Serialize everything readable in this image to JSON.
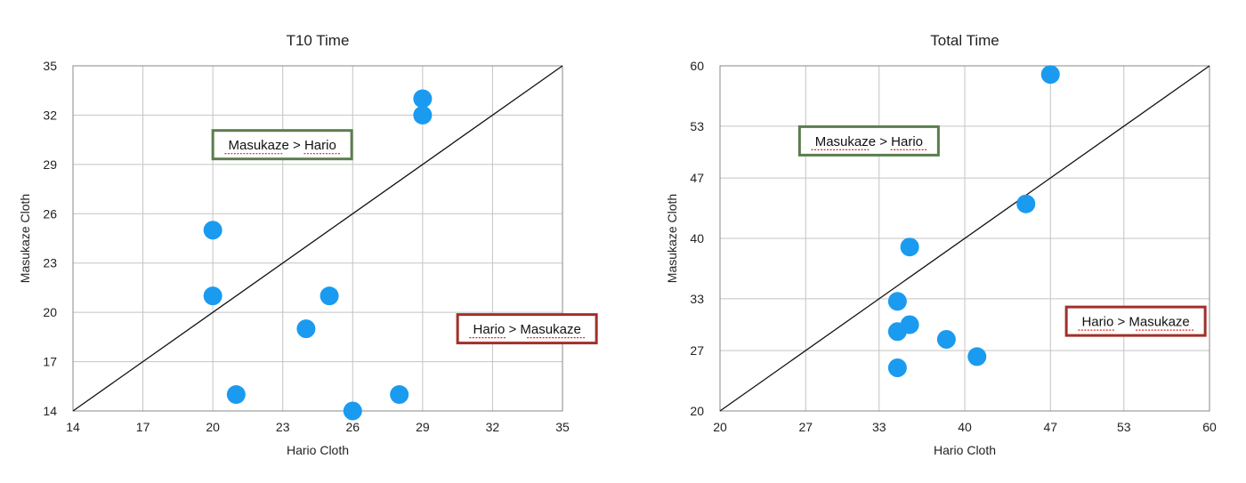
{
  "chart_data": [
    {
      "type": "scatter",
      "title": "T10 Time",
      "xlabel": "Hario Cloth",
      "ylabel": "Masukaze Cloth",
      "xlim": [
        14,
        35
      ],
      "ylim": [
        14,
        35
      ],
      "xticks": [
        14,
        17,
        20,
        23,
        26,
        29,
        32,
        35
      ],
      "yticks": [
        14,
        17,
        20,
        23,
        26,
        29,
        32,
        35
      ],
      "grid": true,
      "diagonal": true,
      "points": [
        {
          "x": 29,
          "y": 33
        },
        {
          "x": 29,
          "y": 32
        },
        {
          "x": 20,
          "y": 25
        },
        {
          "x": 20,
          "y": 21
        },
        {
          "x": 25,
          "y": 21
        },
        {
          "x": 24,
          "y": 19
        },
        {
          "x": 21,
          "y": 15
        },
        {
          "x": 28,
          "y": 15
        },
        {
          "x": 26,
          "y": 14
        }
      ],
      "annotations": [
        {
          "text": "Masukaze > Hario",
          "x": 20,
          "y": 30.2,
          "color": "#5b7d4e"
        },
        {
          "text": "Hario > Masukaze",
          "x": 30.5,
          "y": 19,
          "color": "#a0302a"
        }
      ],
      "point_color": "#1a9bf0"
    },
    {
      "type": "scatter",
      "title": "Total Time",
      "xlabel": "Hario Cloth",
      "ylabel": "Masukaze Cloth",
      "xlim": [
        20,
        60
      ],
      "ylim": [
        20,
        60
      ],
      "xticks": [
        20,
        27,
        33,
        40,
        47,
        53,
        60
      ],
      "yticks": [
        20,
        27,
        33,
        40,
        47,
        53,
        60
      ],
      "grid": true,
      "diagonal": true,
      "points": [
        {
          "x": 47,
          "y": 59
        },
        {
          "x": 45,
          "y": 44
        },
        {
          "x": 35.5,
          "y": 39
        },
        {
          "x": 34.5,
          "y": 32.7
        },
        {
          "x": 35.5,
          "y": 30
        },
        {
          "x": 34.5,
          "y": 29.2
        },
        {
          "x": 38.5,
          "y": 28.3
        },
        {
          "x": 41,
          "y": 26.3
        },
        {
          "x": 34.5,
          "y": 25
        }
      ],
      "annotations": [
        {
          "text": "Masukaze > Hario",
          "x": 26.5,
          "y": 51.3,
          "color": "#5b7d4e"
        },
        {
          "text": "Hario > Masukaze",
          "x": 48.3,
          "y": 30.4,
          "color": "#a0302a"
        }
      ],
      "point_color": "#1a9bf0"
    }
  ]
}
